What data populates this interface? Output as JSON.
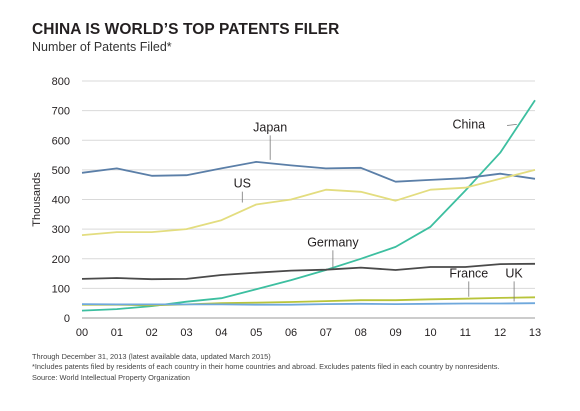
{
  "header": {
    "title": "CHINA IS WORLD’S TOP PATENTS FILER",
    "subtitle": "Number of Patents Filed*"
  },
  "footnotes": {
    "line1": "Through December 31, 2013 (latest available data, updated March 2015)",
    "line2": "*Includes patents filed by residents of each country in their home countries and abroad. Excludes patents filed in each country by nonresidents.",
    "line3": "Source: World Intellectual Property Organization"
  },
  "chart_data": {
    "type": "line",
    "title": "CHINA IS WORLD’S TOP PATENTS FILER",
    "subtitle": "Number of Patents Filed*",
    "ylabel": "Thousands",
    "xlabel": "",
    "x": [
      "00",
      "01",
      "02",
      "03",
      "04",
      "05",
      "06",
      "07",
      "08",
      "09",
      "10",
      "11",
      "12",
      "13"
    ],
    "ylim": [
      0,
      800
    ],
    "yticks": [
      0,
      100,
      200,
      300,
      400,
      500,
      600,
      700,
      800
    ],
    "grid": true,
    "series": [
      {
        "name": "China",
        "color": "#3dbfa0",
        "label_at": 11.1,
        "label_value": 640,
        "values": [
          25,
          30,
          40,
          55,
          67,
          97,
          128,
          162,
          200,
          240,
          308,
          430,
          558,
          735
        ]
      },
      {
        "name": "Japan",
        "color": "#5b7fa8",
        "label_at": 5.4,
        "label_value": 630,
        "values": [
          490,
          505,
          480,
          482,
          505,
          527,
          515,
          505,
          507,
          460,
          466,
          472,
          487,
          470
        ]
      },
      {
        "name": "US",
        "color": "#e3dd7f",
        "label_at": 4.6,
        "label_value": 440,
        "values": [
          280,
          290,
          290,
          300,
          330,
          383,
          400,
          433,
          426,
          396,
          433,
          440,
          470,
          500
        ]
      },
      {
        "name": "Germany",
        "color": "#4a4a4a",
        "label_at": 7.2,
        "label_value": 242,
        "values": [
          132,
          135,
          131,
          132,
          145,
          153,
          160,
          163,
          170,
          162,
          172,
          172,
          182,
          183
        ]
      },
      {
        "name": "France",
        "color": "#b8c43a",
        "label_at": 11.1,
        "label_value": 137,
        "values": [
          45,
          45,
          43,
          46,
          50,
          52,
          54,
          57,
          60,
          60,
          63,
          65,
          68,
          70
        ]
      },
      {
        "name": "UK",
        "color": "#6fa8dc",
        "label_at": 12.4,
        "label_value": 137,
        "values": [
          47,
          46,
          46,
          46,
          46,
          45,
          45,
          47,
          48,
          47,
          48,
          49,
          49,
          50
        ]
      }
    ]
  }
}
